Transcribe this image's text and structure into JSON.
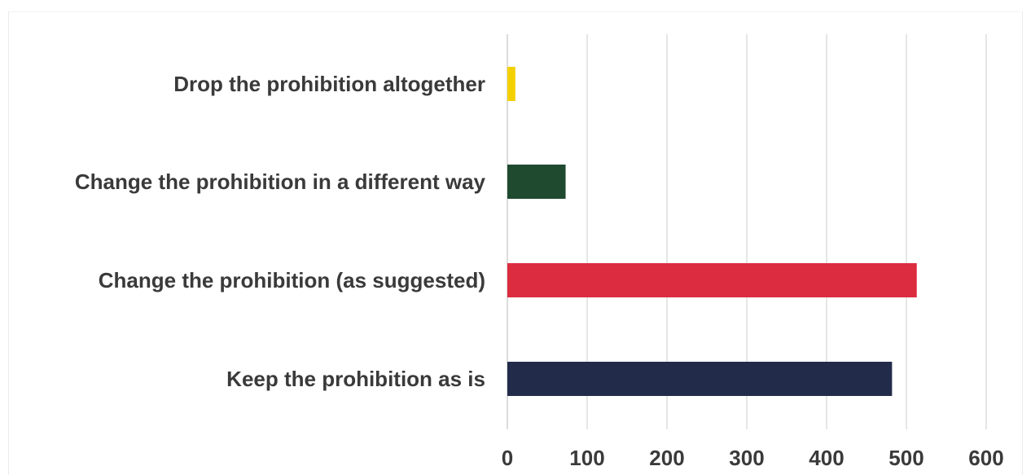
{
  "chart_data": {
    "type": "bar",
    "orientation": "horizontal",
    "categories": [
      "Drop the prohibition altogether",
      "Change the prohibition in a different way",
      "Change the prohibition (as suggested)",
      "Keep the prohibition as is"
    ],
    "values": [
      10,
      73,
      513,
      482
    ],
    "colors": [
      "#f5d000",
      "#1f4a30",
      "#dc2c40",
      "#222b4a"
    ],
    "xlim": [
      0,
      600
    ],
    "xticks": [
      0,
      100,
      200,
      300,
      400,
      500,
      600
    ],
    "xtick_labels": [
      "0",
      "100",
      "200",
      "300",
      "400",
      "500",
      "600"
    ],
    "grid": "vertical",
    "legend": "none",
    "title": "",
    "xlabel": "",
    "ylabel": ""
  }
}
